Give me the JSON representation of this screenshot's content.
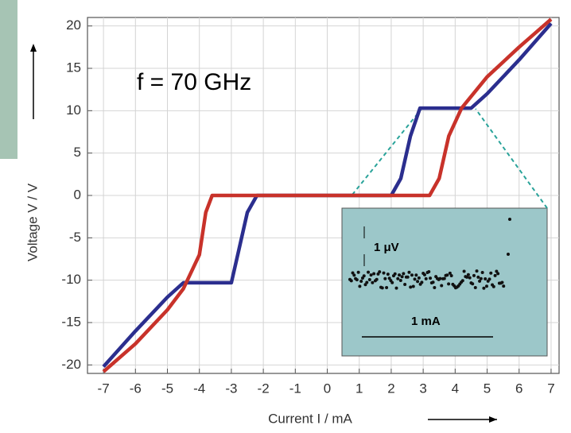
{
  "chart_data": {
    "type": "line",
    "x_label": "Current I / mA",
    "y_label": "Voltage V / V",
    "annotation": "f = 70 GHz",
    "inset_labels": [
      "1 μV",
      "1 mA"
    ],
    "xlim": [
      -7.5,
      7.25
    ],
    "ylim": [
      -21,
      21
    ],
    "xticks": [
      -7,
      -6,
      -5,
      -4,
      -3,
      -2,
      -1,
      0,
      1,
      2,
      3,
      4,
      5,
      6,
      7
    ],
    "yticks": [
      -20,
      -15,
      -10,
      -5,
      0,
      5,
      10,
      15,
      20
    ],
    "grid": true,
    "series": [
      {
        "color": "#2b2e8e",
        "x": [
          -7,
          -6,
          -5,
          -4.5,
          -3,
          -2.8,
          -2.5,
          -2.2,
          2,
          2.3,
          2.6,
          2.9,
          4.5,
          5,
          6,
          7
        ],
        "values": [
          -20.2,
          -16,
          -12,
          -10.3,
          -10.3,
          -7,
          -2,
          0,
          0,
          2,
          7,
          10.3,
          10.3,
          12,
          16,
          20.3
        ]
      },
      {
        "color": "#c8322a",
        "x": [
          -7,
          -6,
          -5,
          -4.5,
          -4,
          -3.8,
          -3.6,
          3.2,
          3.5,
          3.8,
          4.2,
          5,
          6,
          7
        ],
        "values": [
          -20.8,
          -17.5,
          -13.5,
          -11,
          -7,
          -2,
          0,
          0,
          2,
          7,
          10.3,
          14,
          17.5,
          20.8
        ]
      }
    ]
  }
}
